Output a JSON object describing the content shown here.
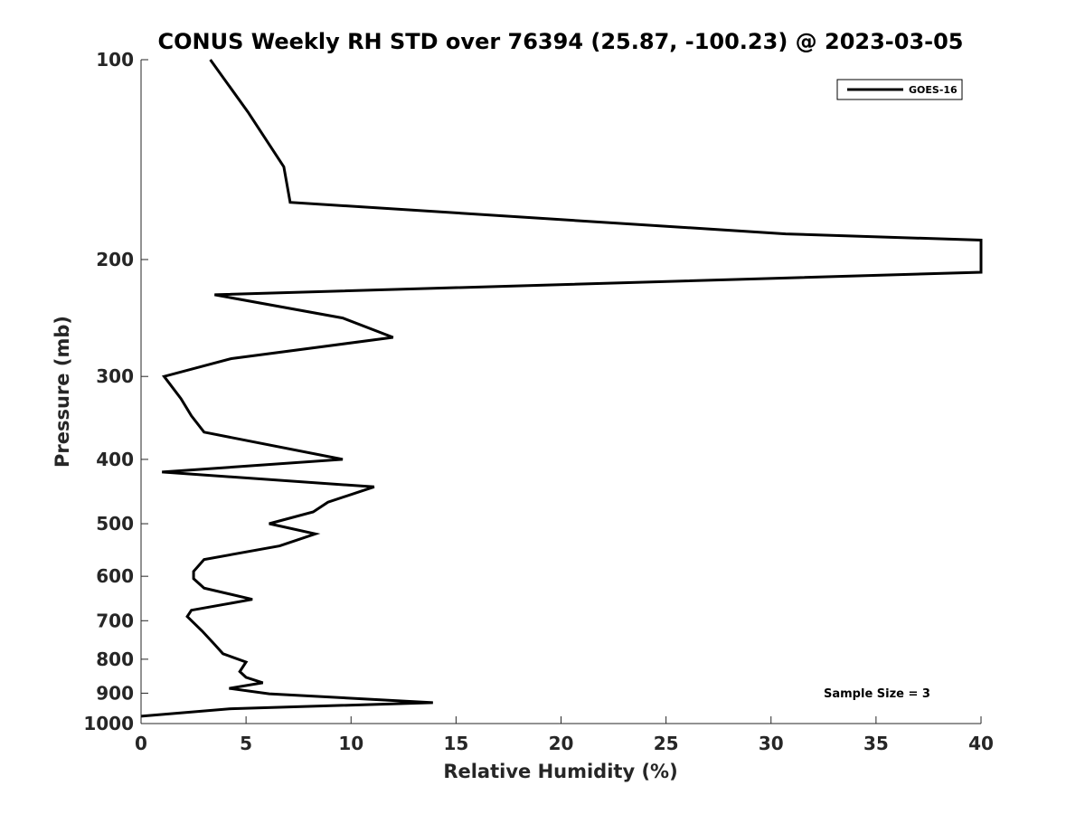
{
  "chart_data": {
    "type": "line",
    "title": "CONUS Weekly RH STD over 76394 (25.87, -100.23) @ 2023-03-05",
    "xlabel": "Relative Humidity (%)",
    "ylabel": "Pressure (mb)",
    "xlim": [
      0,
      40
    ],
    "ylim": [
      100,
      1000
    ],
    "y_scale": "log",
    "y_reversed": true,
    "grid": false,
    "legend_position": "top-right",
    "x_ticks": [
      "0",
      "5",
      "10",
      "15",
      "20",
      "25",
      "30",
      "35",
      "40"
    ],
    "y_ticks": [
      "100",
      "200",
      "300",
      "400",
      "500",
      "600",
      "700",
      "800",
      "900",
      "1000"
    ],
    "annotation": "Sample Size = 3",
    "series": [
      {
        "name": "GOES-16",
        "color": "#000000",
        "x": [
          3.3,
          5.1,
          6.8,
          7.1,
          30.7,
          40.0,
          40.0,
          3.5,
          9.6,
          12.0,
          4.3,
          1.1,
          1.9,
          2.4,
          3.0,
          9.6,
          1.0,
          11.1,
          8.9,
          8.2,
          6.1,
          8.3,
          6.6,
          3.0,
          2.5,
          2.5,
          3.0,
          5.3,
          2.4,
          2.2,
          2.9,
          3.5,
          3.9,
          5.0,
          4.7,
          5.0,
          5.8,
          4.2,
          6.1,
          13.9,
          4.3,
          0.0
        ],
        "y": [
          100,
          120,
          145,
          164,
          183,
          187,
          209,
          226,
          245,
          262,
          282,
          300,
          324,
          344,
          364,
          400,
          418,
          440,
          464,
          480,
          500,
          518,
          540,
          566,
          590,
          605,
          625,
          650,
          675,
          690,
          725,
          760,
          785,
          808,
          835,
          852,
          868,
          885,
          902,
          930,
          950,
          975
        ]
      }
    ]
  }
}
